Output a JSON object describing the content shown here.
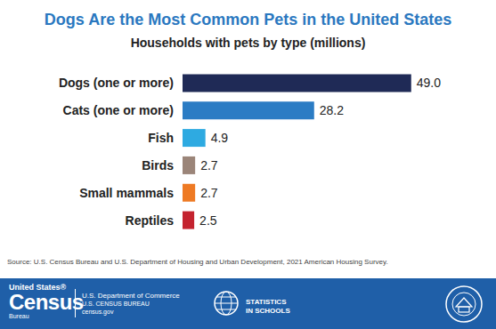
{
  "chart_data": {
    "type": "bar",
    "title": "Dogs Are the Most Common Pets in the United States",
    "subtitle": "Households with pets by type (millions)",
    "orientation": "horizontal",
    "categories": [
      "Dogs (one or more)",
      "Cats (one or more)",
      "Fish",
      "Birds",
      "Small mammals",
      "Reptiles"
    ],
    "values": [
      49.0,
      28.2,
      4.9,
      2.7,
      2.7,
      2.5
    ],
    "value_labels": [
      "49.0",
      "28.2",
      "4.9",
      "2.7",
      "2.7",
      "2.5"
    ],
    "colors": [
      "#1f2a56",
      "#2b7cc4",
      "#2eaae1",
      "#9b8579",
      "#ee7a24",
      "#c4232f"
    ],
    "data_labels": true,
    "tick_labels": "y",
    "grid": false,
    "source": "Source: U.S. Census Bureau and U.S. Department of Housing and Urban Development, 2021 American Housing Survey."
  },
  "footer": {
    "logo": [
      "United States®",
      "Census",
      "Bureau"
    ],
    "agency": [
      "U.S. Department of Commerce",
      "U.S. CENSUS BUREAU",
      "census.gov"
    ],
    "program": [
      "STATISTICS",
      "IN SCHOOLS"
    ]
  }
}
